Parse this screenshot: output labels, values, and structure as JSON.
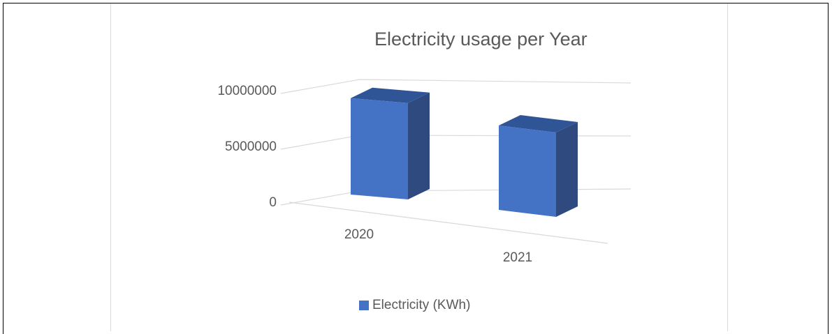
{
  "chart_data": {
    "type": "bar",
    "title": "Electricity usage per Year",
    "categories": [
      "2020",
      "2021"
    ],
    "series": [
      {
        "name": "Electricity (KWh)",
        "values": [
          8000000,
          7000000
        ]
      }
    ],
    "ylim": [
      0,
      10000000
    ],
    "yticks": [
      "0",
      "5000000",
      "10000000"
    ],
    "xlabel": "",
    "ylabel": "",
    "grid": true,
    "legend_position": "bottom",
    "colors": {
      "front": "#4472c4",
      "side": "#2e4a7f",
      "top": "#2f5597",
      "grid": "#d9d9d9",
      "text": "#595959"
    }
  }
}
